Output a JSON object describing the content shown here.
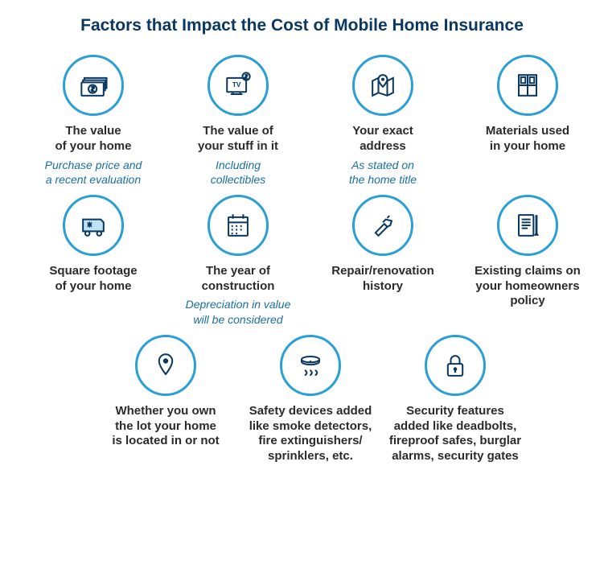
{
  "title": "Factors that Impact the Cost of Mobile Home Insurance",
  "title_color": "#0a3860",
  "title_fontsize": 21,
  "circle_border_color": "#2a9fd6",
  "circle_border_width": 3,
  "icon_color": "#0a3860",
  "label_color": "#2b2b2b",
  "label_fontsize": 15,
  "sub_color": "#1a6fa3",
  "sub_fontsize": 14,
  "rows": [
    [
      {
        "icon": "money",
        "label": "The value\nof your home",
        "sub": "Purchase price and\na recent evaluation"
      },
      {
        "icon": "tv",
        "label": "The value of\nyour stuff in it",
        "sub": "Including\ncollectibles"
      },
      {
        "icon": "map-pin",
        "label": "Your exact\naddress",
        "sub": "As stated on\nthe home title"
      },
      {
        "icon": "window",
        "label": "Materials used\nin your home",
        "sub": ""
      }
    ],
    [
      {
        "icon": "trailer",
        "label": "Square footage\nof your home",
        "sub": ""
      },
      {
        "icon": "calendar",
        "label": "The year of\nconstruction",
        "sub": "Depreciation in value\nwill be considered"
      },
      {
        "icon": "hammer",
        "label": "Repair/renovation\nhistory",
        "sub": ""
      },
      {
        "icon": "document",
        "label": "Existing claims on\nyour homeowners\npolicy",
        "sub": ""
      }
    ],
    [
      {
        "icon": "pin",
        "label": "Whether you own\nthe lot your home\nis located in or not",
        "sub": ""
      },
      {
        "icon": "smoke",
        "label": "Safety devices added\nlike smoke detectors,\nfire extinguishers/\nsprinklers, etc.",
        "sub": ""
      },
      {
        "icon": "lock",
        "label": "Security features\nadded like deadbolts,\nfireproof safes, burglar\nalarms, security gates",
        "sub": ""
      }
    ]
  ]
}
